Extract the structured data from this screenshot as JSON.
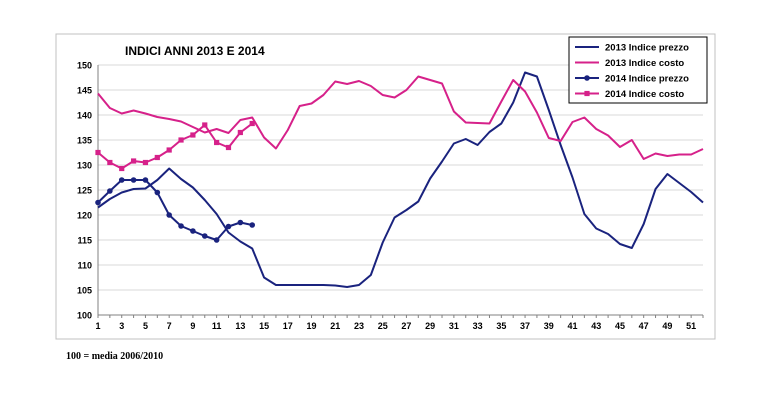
{
  "chart_data": {
    "type": "line",
    "title": "INDICI ANNI 2013 E 2014",
    "xlabel": "",
    "ylabel": "",
    "ylim": [
      100,
      150
    ],
    "xlim": [
      1,
      52
    ],
    "ytick_step": 5,
    "yticks": [
      "100",
      "105",
      "110",
      "115",
      "120",
      "125",
      "130",
      "135",
      "140",
      "145",
      "150"
    ],
    "xticks": [
      "1",
      "3",
      "5",
      "7",
      "9",
      "11",
      "13",
      "15",
      "17",
      "19",
      "21",
      "23",
      "25",
      "27",
      "29",
      "31",
      "33",
      "35",
      "37",
      "39",
      "41",
      "43",
      "45",
      "47",
      "49",
      "51"
    ],
    "grid": "horizontal",
    "legend_position": "top-right",
    "series": [
      {
        "name": "2013 Indice prezzo",
        "color": "#1a237e",
        "marker": "none",
        "x": [
          1,
          2,
          3,
          4,
          5,
          6,
          7,
          8,
          9,
          10,
          11,
          12,
          13,
          14,
          15,
          16,
          17,
          18,
          19,
          20,
          21,
          22,
          23,
          24,
          25,
          26,
          27,
          28,
          29,
          30,
          31,
          32,
          33,
          34,
          35,
          36,
          37,
          38,
          39,
          40,
          41,
          42,
          43,
          44,
          45,
          46,
          47,
          48,
          49,
          50,
          51,
          52
        ],
        "values": [
          121.5,
          123.2,
          124.5,
          125.2,
          125.3,
          127,
          129.3,
          127.2,
          125.5,
          123,
          120.2,
          116.5,
          114.7,
          113.3,
          107.5,
          106,
          106,
          106,
          106,
          106,
          105.9,
          105.6,
          106,
          108,
          114.5,
          119.5,
          121,
          122.7,
          127.3,
          130.7,
          134.3,
          135.2,
          134,
          136.6,
          138.3,
          142.5,
          148.5,
          147.7,
          141,
          134,
          127.5,
          120.2,
          117.3,
          116.2,
          114.2,
          113.4,
          118.2,
          125.2,
          128.2,
          126.4,
          124.6,
          122.5
        ]
      },
      {
        "name": "2013 Indice costo",
        "color": "#d6218a",
        "marker": "none",
        "x": [
          1,
          2,
          3,
          4,
          5,
          6,
          7,
          8,
          9,
          10,
          11,
          12,
          13,
          14,
          15,
          16,
          17,
          18,
          19,
          20,
          21,
          22,
          23,
          24,
          25,
          26,
          27,
          28,
          29,
          30,
          31,
          32,
          33,
          34,
          35,
          36,
          37,
          38,
          39,
          40,
          41,
          42,
          43,
          44,
          45,
          46,
          47,
          48,
          49,
          50,
          51,
          52
        ],
        "values": [
          144.3,
          141.4,
          140.3,
          140.9,
          140.3,
          139.6,
          139.2,
          138.7,
          137.6,
          136.5,
          137.2,
          136.4,
          139,
          139.5,
          135.5,
          133.3,
          137,
          141.8,
          142.3,
          144,
          146.7,
          146.2,
          146.8,
          145.8,
          144,
          143.5,
          145,
          147.7,
          147,
          146.3,
          140.7,
          138.5,
          138.4,
          138.3,
          142.7,
          147,
          144.7,
          140.5,
          135.4,
          134.8,
          138.6,
          139.5,
          137.2,
          135.9,
          133.6,
          135,
          131.2,
          132.3,
          131.8,
          132.1,
          132.1,
          133.2
        ]
      },
      {
        "name": "2014 Indice prezzo",
        "color": "#1a237e",
        "marker": "circle",
        "x": [
          1,
          2,
          3,
          4,
          5,
          6,
          7,
          8,
          9,
          10,
          11,
          12,
          13,
          14
        ],
        "values": [
          122.5,
          124.8,
          127,
          127,
          127,
          124.5,
          120,
          117.8,
          116.8,
          115.8,
          115,
          117.7,
          118.5,
          118
        ]
      },
      {
        "name": "2014 Indice costo",
        "color": "#d6218a",
        "marker": "square",
        "x": [
          1,
          2,
          3,
          4,
          5,
          6,
          7,
          8,
          9,
          10,
          11,
          12,
          13,
          14
        ],
        "values": [
          132.5,
          130.5,
          129.3,
          130.8,
          130.5,
          131.5,
          133,
          135,
          136,
          138,
          134.5,
          133.5,
          136.5,
          138.3
        ]
      }
    ],
    "footnote": "100 = media 2006/2010"
  }
}
